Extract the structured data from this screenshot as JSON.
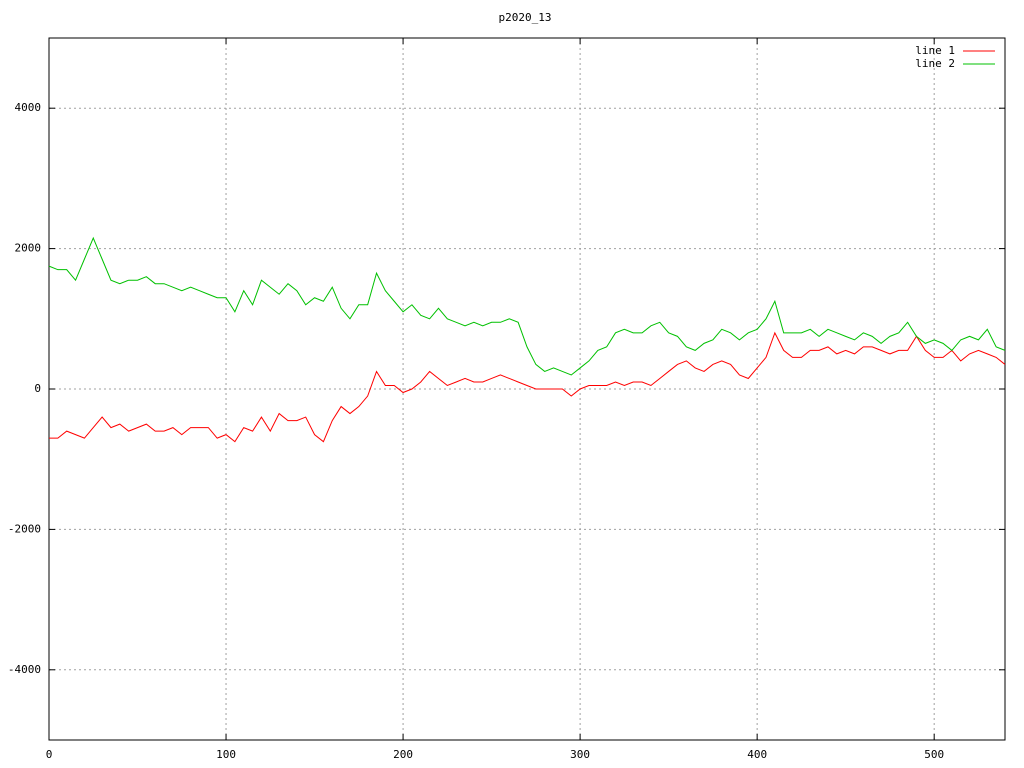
{
  "chart_data": {
    "type": "line",
    "title": "p2020_13",
    "x": [
      0,
      5,
      10,
      15,
      20,
      25,
      30,
      35,
      40,
      45,
      50,
      55,
      60,
      65,
      70,
      75,
      80,
      85,
      90,
      95,
      100,
      105,
      110,
      115,
      120,
      125,
      130,
      135,
      140,
      145,
      150,
      155,
      160,
      165,
      170,
      175,
      180,
      185,
      190,
      195,
      200,
      205,
      210,
      215,
      220,
      225,
      230,
      235,
      240,
      245,
      250,
      255,
      260,
      265,
      270,
      275,
      280,
      285,
      290,
      295,
      300,
      305,
      310,
      315,
      320,
      325,
      330,
      335,
      340,
      345,
      350,
      355,
      360,
      365,
      370,
      375,
      380,
      385,
      390,
      395,
      400,
      405,
      410,
      415,
      420,
      425,
      430,
      435,
      440,
      445,
      450,
      455,
      460,
      465,
      470,
      475,
      480,
      485,
      490,
      495,
      500,
      505,
      510,
      515,
      520,
      525,
      530,
      535,
      540
    ],
    "series": [
      {
        "name": "line 1",
        "color": "#ff0000",
        "values": [
          -700,
          -700,
          -600,
          -650,
          -700,
          -550,
          -400,
          -550,
          -500,
          -600,
          -550,
          -500,
          -600,
          -600,
          -550,
          -650,
          -550,
          -550,
          -550,
          -700,
          -650,
          -750,
          -550,
          -600,
          -400,
          -600,
          -350,
          -450,
          -450,
          -400,
          -650,
          -750,
          -450,
          -250,
          -350,
          -250,
          -100,
          250,
          50,
          50,
          -50,
          0,
          100,
          250,
          150,
          50,
          100,
          150,
          100,
          100,
          150,
          200,
          150,
          100,
          50,
          0,
          0,
          0,
          0,
          -100,
          0,
          50,
          50,
          50,
          100,
          50,
          100,
          100,
          50,
          150,
          250,
          350,
          400,
          300,
          250,
          350,
          400,
          350,
          200,
          150,
          300,
          450,
          800,
          550,
          450,
          450,
          550,
          550,
          600,
          500,
          550,
          500,
          600,
          600,
          550,
          500,
          550,
          550,
          750,
          550,
          450,
          450,
          550,
          400,
          500,
          550,
          500,
          450,
          350
        ]
      },
      {
        "name": "line 2",
        "color": "#00c000",
        "values": [
          1750,
          1700,
          1700,
          1550,
          1850,
          2150,
          1850,
          1550,
          1500,
          1550,
          1550,
          1600,
          1500,
          1500,
          1450,
          1400,
          1450,
          1400,
          1350,
          1300,
          1300,
          1100,
          1400,
          1200,
          1550,
          1450,
          1350,
          1500,
          1400,
          1200,
          1300,
          1250,
          1450,
          1150,
          1000,
          1200,
          1200,
          1650,
          1400,
          1250,
          1100,
          1200,
          1050,
          1000,
          1150,
          1000,
          950,
          900,
          950,
          900,
          950,
          950,
          1000,
          950,
          600,
          350,
          250,
          300,
          250,
          200,
          300,
          400,
          550,
          600,
          800,
          850,
          800,
          800,
          900,
          950,
          800,
          750,
          600,
          550,
          650,
          700,
          850,
          800,
          700,
          800,
          850,
          1000,
          1250,
          800,
          800,
          800,
          850,
          750,
          850,
          800,
          750,
          700,
          800,
          750,
          650,
          750,
          800,
          950,
          750,
          650,
          700,
          650,
          550,
          700,
          750,
          700,
          850,
          600,
          550
        ]
      }
    ],
    "xlim": [
      0,
      540
    ],
    "ylim": [
      -5000,
      5000
    ],
    "xticks": [
      0,
      100,
      200,
      300,
      400,
      500
    ],
    "yticks": [
      -4000,
      -2000,
      0,
      2000,
      4000
    ],
    "grid": true,
    "legend": "top-right"
  }
}
